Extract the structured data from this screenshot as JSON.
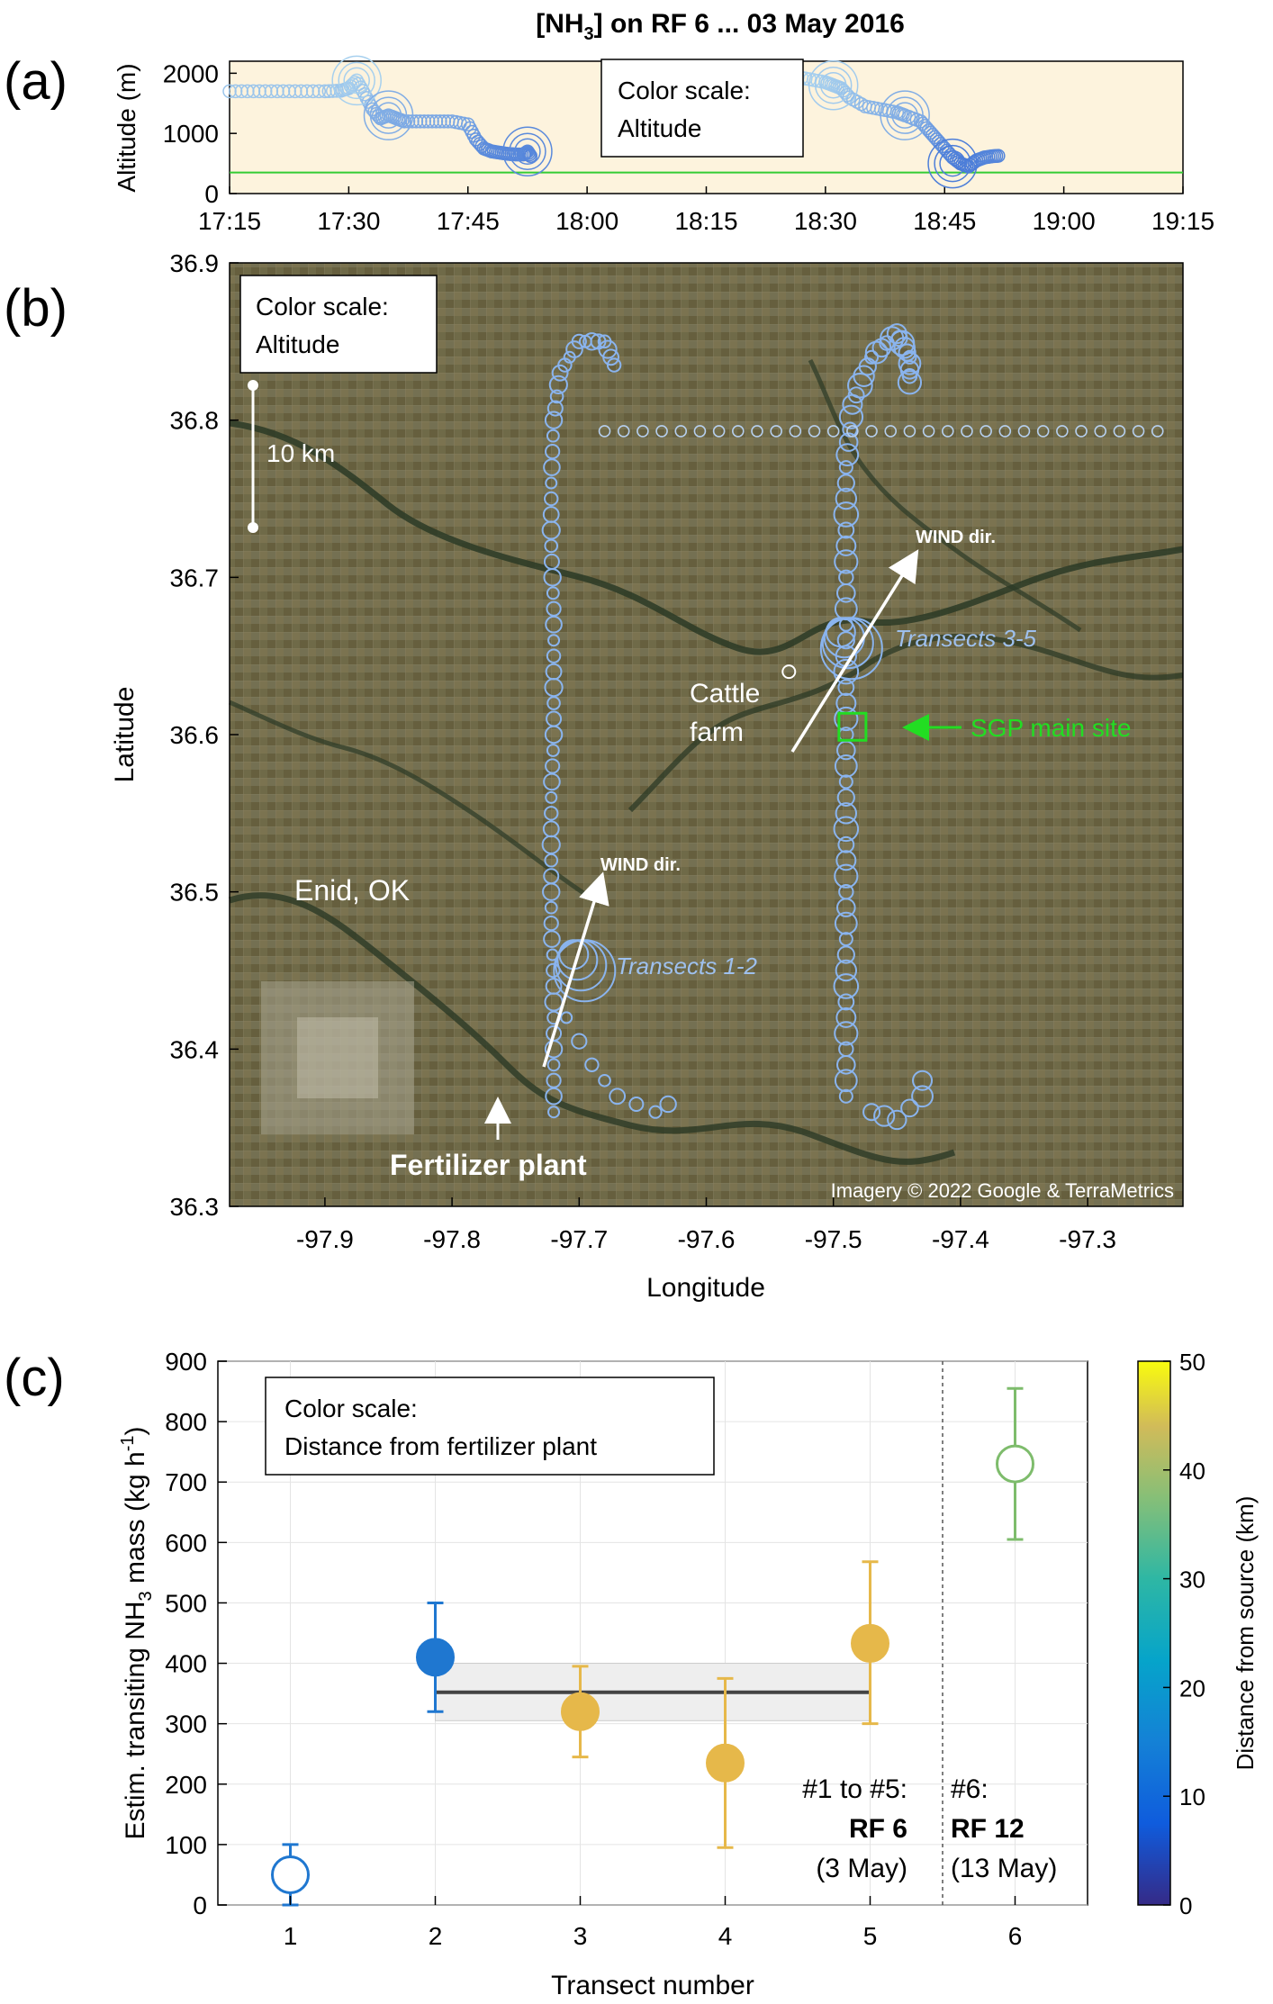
{
  "figure_title": "[NH3] on RF 6 ... 03 May 2016",
  "panel_labels": [
    "(a)",
    "(b)",
    "(c)"
  ],
  "chart_data": [
    {
      "id": "a",
      "type": "scatter",
      "title": "[NH3] on RF 6 ... 03 May 2016",
      "xlabel": "",
      "ylabel": "Altitude (m)",
      "x_ticks": [
        "17:15",
        "17:30",
        "17:45",
        "18:00",
        "18:15",
        "18:30",
        "18:45",
        "19:00",
        "19:15"
      ],
      "xlim_minutes": [
        0,
        120
      ],
      "ylim": [
        0,
        2200
      ],
      "y_ticks": [
        0,
        1000,
        2000
      ],
      "legend_text": [
        "Color scale:",
        "Altitude"
      ],
      "background": "#fdf3dd",
      "ground_line_altitude": 350,
      "ground_line_color": "#33cc33",
      "series": [
        {
          "points": [
            [
              0,
              1700
            ],
            [
              3,
              1700
            ],
            [
              6,
              1700
            ],
            [
              9,
              1700
            ],
            [
              12,
              1700
            ],
            [
              14,
              1710
            ],
            [
              15,
              1750
            ],
            [
              16,
              1880
            ],
            [
              17,
              1650
            ],
            [
              18,
              1400
            ],
            [
              19,
              1250
            ],
            [
              20,
              1300
            ],
            [
              21,
              1250
            ],
            [
              22,
              1200
            ],
            [
              24,
              1200
            ],
            [
              26,
              1200
            ],
            [
              28,
              1200
            ],
            [
              30,
              1150
            ],
            [
              31,
              900
            ],
            [
              32,
              750
            ],
            [
              33,
              700
            ],
            [
              34,
              680
            ],
            [
              35,
              660
            ],
            [
              36,
              650
            ],
            [
              37,
              650
            ],
            [
              37.5,
              700
            ],
            [
              38,
              600
            ]
          ]
        },
        {
          "points": [
            [
              67,
              2000
            ],
            [
              69,
              1980
            ],
            [
              71,
              1950
            ],
            [
              73,
              1900
            ],
            [
              75,
              1850
            ],
            [
              76,
              1800
            ],
            [
              77,
              1750
            ],
            [
              78,
              1600
            ],
            [
              80,
              1450
            ],
            [
              82,
              1400
            ],
            [
              84,
              1350
            ],
            [
              85,
              1300
            ],
            [
              87,
              1200
            ],
            [
              88,
              1050
            ],
            [
              89,
              900
            ],
            [
              90,
              750
            ],
            [
              91,
              600
            ],
            [
              92,
              500
            ],
            [
              93,
              450
            ],
            [
              94,
              550
            ],
            [
              95,
              600
            ],
            [
              96,
              620
            ],
            [
              97,
              630
            ]
          ]
        }
      ],
      "big_circles": [
        [
          16,
          1880
        ],
        [
          20,
          1300
        ],
        [
          37.5,
          700
        ],
        [
          76,
          1800
        ],
        [
          85,
          1300
        ],
        [
          91,
          500
        ]
      ]
    },
    {
      "id": "b",
      "type": "map",
      "xlabel": "Longitude",
      "ylabel": "Latitude",
      "xlim": [
        -97.975,
        -97.225
      ],
      "ylim": [
        36.3,
        36.9
      ],
      "x_ticks": [
        "-97.9",
        "-97.8",
        "-97.7",
        "-97.6",
        "-97.5",
        "-97.4",
        "-97.3"
      ],
      "y_ticks": [
        "36.3",
        "36.4",
        "36.5",
        "36.6",
        "36.7",
        "36.8",
        "36.9"
      ],
      "legend_text": [
        "Color scale:",
        "Altitude"
      ],
      "scale_bar_label": "10 km",
      "credit": "Imagery © 2022 Google & TerraMetrics",
      "annotations": {
        "enid": "Enid, OK",
        "fertilizer": "Fertilizer plant",
        "wind1": "WIND dir.",
        "wind2": "WIND dir.",
        "transects12": "Transects 1-2",
        "transects35": "Transects 3-5",
        "cattle1": "Cattle",
        "cattle2": "farm",
        "sgp": "SGP main site"
      },
      "colors": {
        "track": "#8ab4ee",
        "sgp": "#22dd22",
        "text_light": "#9ec0ee"
      },
      "track_west": [
        [
          -97.72,
          36.36
        ],
        [
          -97.72,
          36.4
        ],
        [
          -97.72,
          36.44
        ],
        [
          -97.722,
          36.48
        ],
        [
          -97.722,
          36.52
        ],
        [
          -97.722,
          36.56
        ],
        [
          -97.72,
          36.6
        ],
        [
          -97.72,
          36.64
        ],
        [
          -97.72,
          36.68
        ],
        [
          -97.722,
          36.72
        ],
        [
          -97.722,
          36.76
        ],
        [
          -97.72,
          36.8
        ],
        [
          -97.715,
          36.83
        ],
        [
          -97.7,
          36.85
        ],
        [
          -97.68,
          36.85
        ],
        [
          -97.67,
          36.83
        ]
      ],
      "track_east": [
        [
          -97.49,
          36.37
        ],
        [
          -97.49,
          36.42
        ],
        [
          -97.49,
          36.47
        ],
        [
          -97.49,
          36.52
        ],
        [
          -97.49,
          36.57
        ],
        [
          -97.49,
          36.62
        ],
        [
          -97.49,
          36.67
        ],
        [
          -97.49,
          36.72
        ],
        [
          -97.49,
          36.77
        ],
        [
          -97.485,
          36.81
        ],
        [
          -97.47,
          36.84
        ],
        [
          -97.45,
          36.855
        ],
        [
          -97.44,
          36.84
        ],
        [
          -97.44,
          36.82
        ]
      ],
      "track_horizontal": {
        "lon_start": -97.68,
        "lon_end": -97.23,
        "lat": 36.793
      },
      "track_southwest_loop": [
        [
          -97.71,
          36.42
        ],
        [
          -97.69,
          36.39
        ],
        [
          -97.67,
          36.37
        ],
        [
          -97.64,
          36.36
        ],
        [
          -97.62,
          36.37
        ]
      ],
      "track_east_loop": [
        [
          -97.47,
          36.36
        ],
        [
          -97.45,
          36.355
        ],
        [
          -97.43,
          36.37
        ],
        [
          -97.43,
          36.39
        ]
      ],
      "big_clusters": [
        [
          -97.7,
          36.455
        ],
        [
          -97.49,
          36.66
        ]
      ],
      "sgp_site": [
        -97.485,
        36.605
      ],
      "cattle_farm": [
        -97.535,
        36.64
      ],
      "fertilizer_plant": [
        -97.76,
        36.38
      ],
      "enid": [
        -97.88,
        36.4
      ]
    },
    {
      "id": "c",
      "type": "scatter",
      "xlabel": "Transect number",
      "ylabel": "Estim. transiting NH3 mass (kg h-1)",
      "ylim": [
        0,
        900
      ],
      "xlim": [
        0.5,
        6.5
      ],
      "x_ticks": [
        1,
        2,
        3,
        4,
        5,
        6
      ],
      "y_ticks": [
        0,
        100,
        200,
        300,
        400,
        500,
        600,
        700,
        800,
        900
      ],
      "legend_text": [
        "Color scale:",
        "Distance from fertilizer plant"
      ],
      "colorbar_label": "Distance from source (km)",
      "colorbar_ticks": [
        0,
        10,
        20,
        30,
        40,
        50
      ],
      "series": [
        {
          "x": 1,
          "y": 50,
          "err_low": 0,
          "err_high": 100,
          "color": "#1f77d0",
          "filled": false
        },
        {
          "x": 2,
          "y": 410,
          "err_low": 320,
          "err_high": 500,
          "color": "#1f77d0",
          "filled": true
        },
        {
          "x": 3,
          "y": 320,
          "err_low": 245,
          "err_high": 395,
          "color": "#e6b84a",
          "filled": true
        },
        {
          "x": 4,
          "y": 235,
          "err_low": 95,
          "err_high": 375,
          "color": "#e6b84a",
          "filled": true
        },
        {
          "x": 5,
          "y": 433,
          "err_low": 300,
          "err_high": 568,
          "color": "#e6b84a",
          "filled": true
        },
        {
          "x": 6,
          "y": 730,
          "err_low": 605,
          "err_high": 855,
          "color": "#7ebc6c",
          "filled": false
        }
      ],
      "mean_line": {
        "x_start": 2,
        "x_end": 5,
        "y": 352,
        "band_low": 305,
        "band_high": 400
      },
      "divider_x": 5.5,
      "group_label_left": [
        "#1 to #5:",
        "RF 6",
        "(3 May)"
      ],
      "group_label_right": [
        "#6:",
        "RF 12",
        "(13 May)"
      ]
    }
  ]
}
